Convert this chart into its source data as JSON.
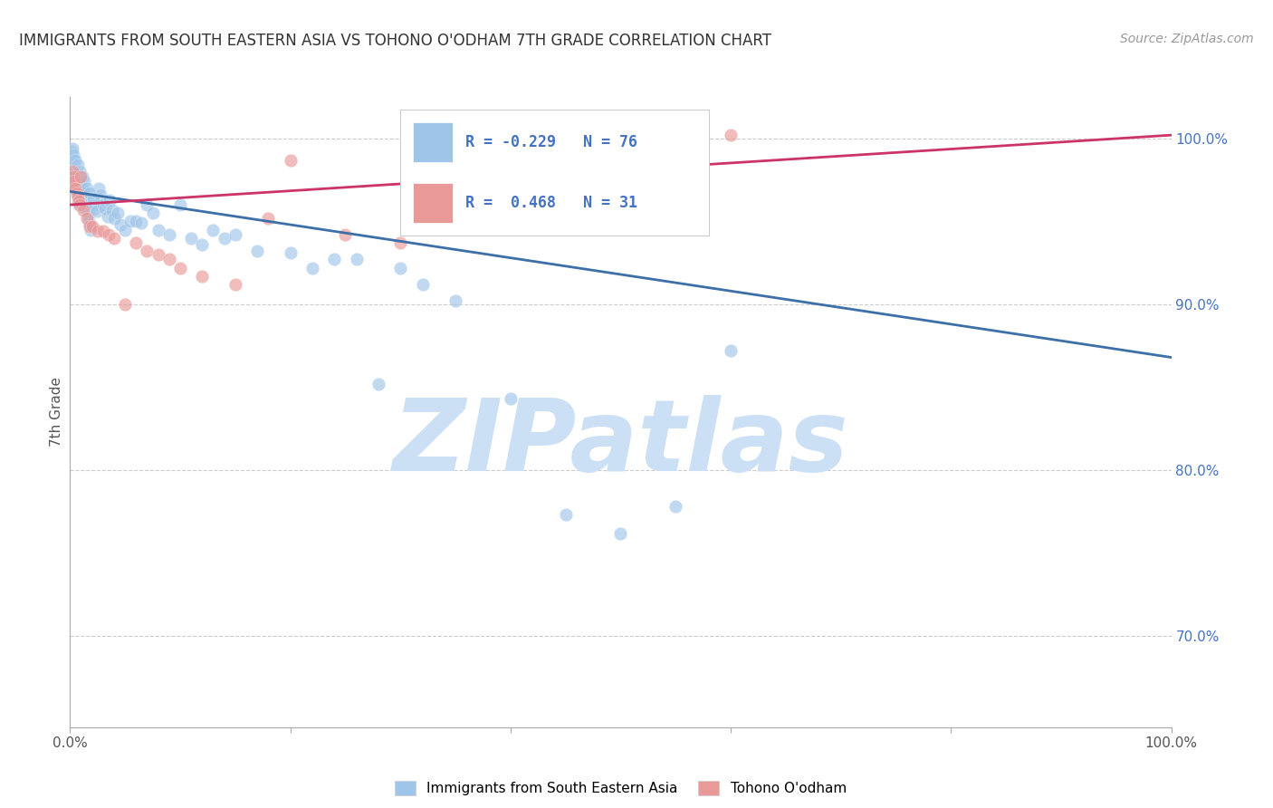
{
  "title": "IMMIGRANTS FROM SOUTH EASTERN ASIA VS TOHONO O'ODHAM 7TH GRADE CORRELATION CHART",
  "source": "Source: ZipAtlas.com",
  "ylabel": "7th Grade",
  "legend_blue_label": "Immigrants from South Eastern Asia",
  "legend_pink_label": "Tohono O'odham",
  "R_blue": -0.229,
  "N_blue": 76,
  "R_pink": 0.468,
  "N_pink": 31,
  "blue_color": "#9fc5e8",
  "pink_color": "#ea9999",
  "blue_line_color": "#3d6fa8",
  "pink_line_color": "#cc3366",
  "blue_scatter_x": [
    0.001,
    0.002,
    0.003,
    0.003,
    0.004,
    0.004,
    0.005,
    0.005,
    0.006,
    0.007,
    0.008,
    0.008,
    0.009,
    0.01,
    0.011,
    0.012,
    0.012,
    0.013,
    0.014,
    0.015,
    0.016,
    0.017,
    0.018,
    0.019,
    0.02,
    0.022,
    0.024,
    0.026,
    0.028,
    0.03,
    0.032,
    0.034,
    0.036,
    0.038,
    0.04,
    0.043,
    0.046,
    0.05,
    0.055,
    0.06,
    0.065,
    0.07,
    0.075,
    0.08,
    0.09,
    0.1,
    0.11,
    0.12,
    0.13,
    0.14,
    0.15,
    0.17,
    0.2,
    0.22,
    0.24,
    0.26,
    0.28,
    0.3,
    0.32,
    0.35,
    0.4,
    0.45,
    0.5,
    0.55,
    0.6,
    0.001,
    0.002,
    0.003,
    0.005,
    0.007,
    0.009,
    0.011,
    0.013,
    0.015,
    0.018,
    0.021
  ],
  "blue_scatter_y": [
    0.978,
    0.982,
    0.987,
    0.975,
    0.974,
    0.972,
    0.97,
    0.968,
    0.966,
    0.963,
    0.96,
    0.978,
    0.972,
    0.975,
    0.97,
    0.968,
    0.965,
    0.962,
    0.958,
    0.957,
    0.954,
    0.95,
    0.948,
    0.945,
    0.96,
    0.958,
    0.956,
    0.97,
    0.966,
    0.96,
    0.958,
    0.953,
    0.963,
    0.957,
    0.952,
    0.955,
    0.948,
    0.945,
    0.95,
    0.95,
    0.949,
    0.96,
    0.955,
    0.945,
    0.942,
    0.96,
    0.94,
    0.936,
    0.945,
    0.94,
    0.942,
    0.932,
    0.931,
    0.922,
    0.927,
    0.927,
    0.852,
    0.922,
    0.912,
    0.902,
    0.843,
    0.773,
    0.762,
    0.778,
    0.872,
    0.992,
    0.994,
    0.99,
    0.987,
    0.984,
    0.98,
    0.977,
    0.974,
    0.97,
    0.967,
    0.964
  ],
  "pink_scatter_x": [
    0.001,
    0.002,
    0.003,
    0.004,
    0.005,
    0.006,
    0.007,
    0.008,
    0.009,
    0.01,
    0.012,
    0.015,
    0.018,
    0.02,
    0.025,
    0.03,
    0.035,
    0.04,
    0.05,
    0.06,
    0.07,
    0.08,
    0.09,
    0.1,
    0.12,
    0.15,
    0.18,
    0.2,
    0.25,
    0.3,
    0.6
  ],
  "pink_scatter_y": [
    0.972,
    0.98,
    0.977,
    0.974,
    0.97,
    0.967,
    0.965,
    0.962,
    0.96,
    0.977,
    0.957,
    0.952,
    0.947,
    0.947,
    0.944,
    0.944,
    0.942,
    0.94,
    0.9,
    0.937,
    0.932,
    0.93,
    0.927,
    0.922,
    0.917,
    0.912,
    0.952,
    0.987,
    0.942,
    0.937,
    1.002
  ],
  "blue_trend_x0": 0.0,
  "blue_trend_y0": 0.968,
  "blue_trend_x1": 1.0,
  "blue_trend_y1": 0.868,
  "pink_trend_x0": 0.0,
  "pink_trend_y0": 0.96,
  "pink_trend_x1": 1.0,
  "pink_trend_y1": 1.002,
  "xlim": [
    0.0,
    1.0
  ],
  "ylim": [
    0.645,
    1.025
  ],
  "yticks": [
    0.7,
    0.8,
    0.9,
    1.0
  ],
  "ytick_labels": [
    "70.0%",
    "80.0%",
    "90.0%",
    "100.0%"
  ],
  "grid_color": "#cccccc",
  "bg_color": "#ffffff",
  "watermark": "ZIPatlas",
  "watermark_color": "#cce0f5",
  "title_fontsize": 12,
  "source_fontsize": 10,
  "tick_label_fontsize": 11,
  "ylabel_fontsize": 11
}
